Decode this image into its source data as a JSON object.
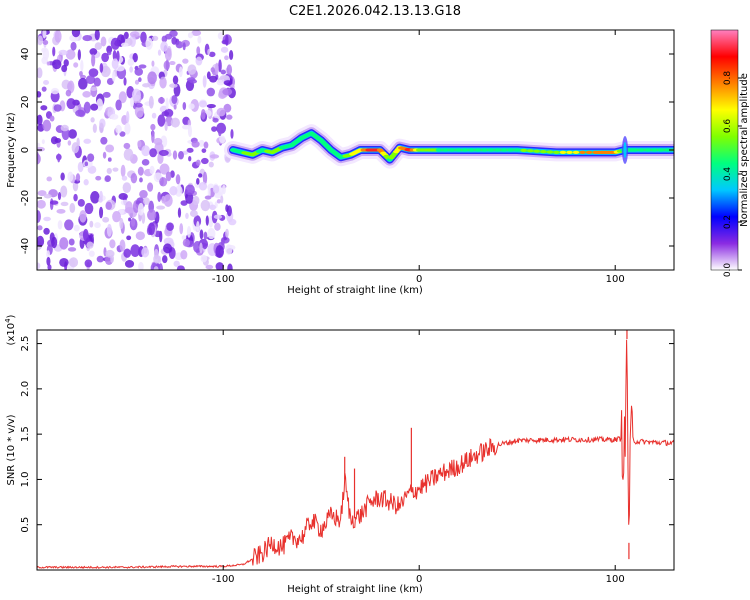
{
  "title": "C2E1.2026.042.13.13.G18",
  "chart_data": [
    {
      "type": "heatmap",
      "name": "spectrogram",
      "xlabel": "Height of straight line (km)",
      "ylabel": "Frequency (Hz)",
      "xlim": [
        -195,
        130
      ],
      "ylim": [
        -50,
        50
      ],
      "xticks": [
        -100,
        0,
        100
      ],
      "xtick_labels": [
        "-100",
        "0",
        "100"
      ],
      "yticks": [
        -40,
        -20,
        0,
        20,
        40
      ],
      "ytick_labels": [
        "-40",
        "-20",
        "0",
        "20",
        "40"
      ],
      "colorbar": {
        "label": "Normalized spectral amplitude",
        "range": [
          0,
          1
        ],
        "ticks": [
          0.0,
          0.2,
          0.4,
          0.6,
          0.8
        ],
        "tick_labels": [
          "0.0",
          "0.2",
          "0.4",
          "0.6",
          "0.8"
        ],
        "colors": [
          "#ffffff",
          "#8a2be2",
          "#0000ff",
          "#00c8ff",
          "#00ff80",
          "#80ff00",
          "#ffff00",
          "#ff8000",
          "#ff0000",
          "#ff80c0"
        ]
      },
      "noise_region_x": [
        -195,
        -95
      ],
      "ridge": {
        "x": [
          -95,
          -90,
          -85,
          -80,
          -75,
          -70,
          -65,
          -60,
          -55,
          -50,
          -45,
          -40,
          -35,
          -30,
          -25,
          -20,
          -15,
          -10,
          -5,
          0,
          10,
          30,
          50,
          70,
          90,
          100,
          105,
          110,
          130
        ],
        "f": [
          0,
          -1,
          -2,
          0,
          -1,
          1,
          2,
          5,
          7,
          4,
          0,
          -3,
          -2,
          0,
          0,
          0,
          -4,
          1,
          0,
          0,
          0,
          0,
          0,
          -1,
          -1,
          -1,
          0,
          0,
          0
        ],
        "amp": [
          0.45,
          0.6,
          0.7,
          0.55,
          0.65,
          0.6,
          0.6,
          0.5,
          0.55,
          0.5,
          0.6,
          0.55,
          0.7,
          0.75,
          0.95,
          0.9,
          0.6,
          0.8,
          0.95,
          0.7,
          0.6,
          0.55,
          0.6,
          0.7,
          0.9,
          0.85,
          0.5,
          0.55,
          0.5
        ]
      }
    },
    {
      "type": "line",
      "name": "snr",
      "xlabel": "Height of straight line (km)",
      "ylabel": "SNR (10 * v/v)",
      "y_multiplier": "(x10",
      "y_multiplier_exp": "4",
      "y_multiplier_close": ")",
      "xlim": [
        -195,
        130
      ],
      "ylim": [
        0,
        2.65
      ],
      "xticks": [
        -100,
        0,
        100
      ],
      "xtick_labels": [
        "-100",
        "0",
        "100"
      ],
      "yticks": [
        0.5,
        1.0,
        1.5,
        2.0,
        2.5
      ],
      "ytick_labels": [
        "0.5",
        "1.0",
        "1.5",
        "2.0",
        "2.5"
      ],
      "color": "#e8312d",
      "series": [
        {
          "name": "SNR",
          "x": [
            -195,
            -150,
            -120,
            -100,
            -90,
            -80,
            -75,
            -70,
            -65,
            -60,
            -55,
            -50,
            -45,
            -40,
            -38,
            -35,
            -30,
            -25,
            -20,
            -15,
            -10,
            -5,
            0,
            10,
            20,
            30,
            40,
            50,
            70,
            90,
            100,
            103,
            105,
            106,
            107,
            108,
            110,
            120,
            130
          ],
          "y": [
            0.03,
            0.03,
            0.04,
            0.04,
            0.06,
            0.18,
            0.3,
            0.25,
            0.35,
            0.35,
            0.55,
            0.45,
            0.6,
            0.55,
            1.0,
            0.55,
            0.6,
            0.75,
            0.8,
            0.75,
            0.7,
            0.85,
            0.9,
            1.05,
            1.15,
            1.28,
            1.38,
            1.43,
            1.44,
            1.44,
            1.44,
            1.45,
            1.3,
            2.55,
            0.3,
            1.5,
            1.42,
            1.41,
            1.4
          ]
        }
      ],
      "spikes": [
        {
          "x": -38,
          "y": 1.25
        },
        {
          "x": -33,
          "y": 1.12
        },
        {
          "x": -4,
          "y": 1.57
        },
        {
          "x": 106,
          "y": 2.65
        },
        {
          "x": 107,
          "y": 0.12
        }
      ]
    }
  ]
}
